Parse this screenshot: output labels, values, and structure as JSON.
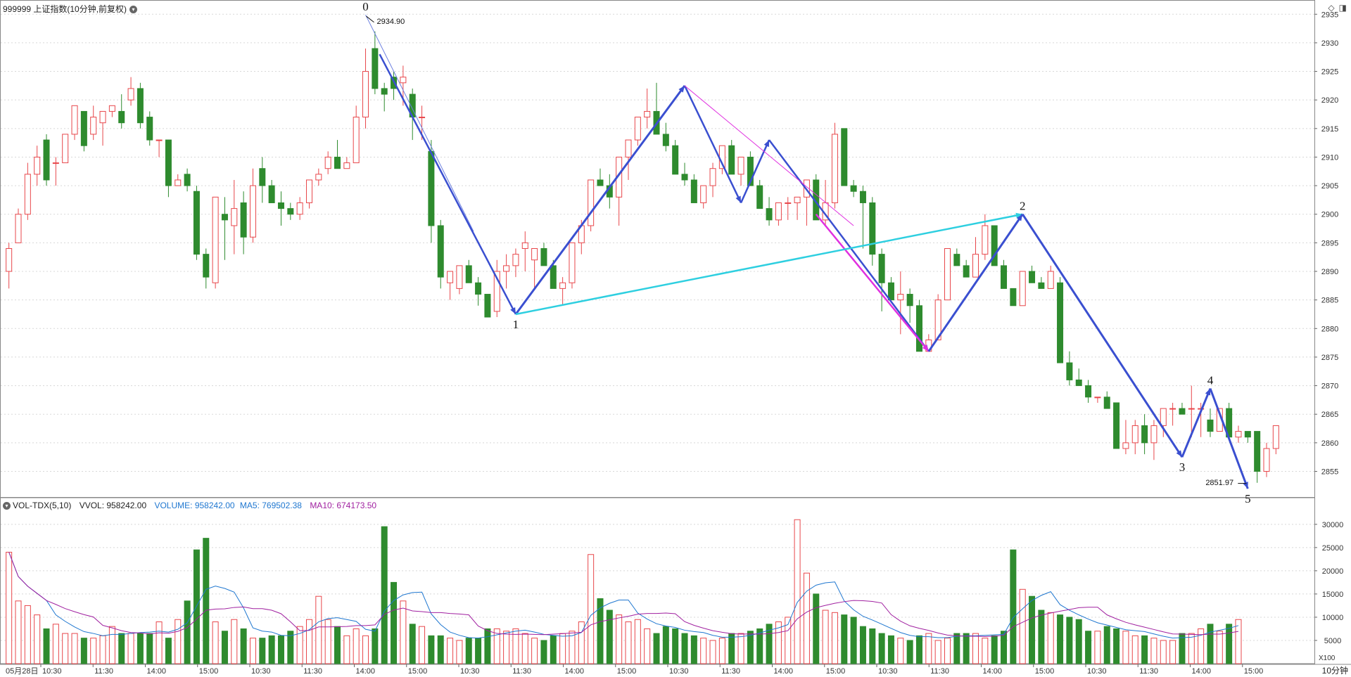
{
  "header": {
    "symbol_title": "999999 上证指数(10分钟,前复权)",
    "dropdown_icon": "chevron-down-icon",
    "icons": [
      "diamond-icon",
      "panel-toggle-icon"
    ]
  },
  "volume_header": {
    "indicator": "VOL-TDX(5,10)",
    "vvol": "VVOL: 958242.00",
    "volume": "VOLUME: 958242.00",
    "ma5": "MA5: 769502.38",
    "ma10": "MA10: 674173.50",
    "colors": {
      "volume": "#1f77d0",
      "ma5": "#1f77d0",
      "ma10": "#a020a0"
    }
  },
  "footer": {
    "period": "10分钟",
    "volume_unit": "X100"
  },
  "chart_data": [
    {
      "type": "candlestick",
      "ylim": [
        2851,
        2937
      ],
      "y_ticks": [
        2855,
        2860,
        2865,
        2870,
        2875,
        2880,
        2885,
        2890,
        2895,
        2900,
        2905,
        2910,
        2915,
        2920,
        2925,
        2930,
        2935
      ],
      "x_tick_labels": [
        "05月28日",
        "10:30",
        "11:30",
        "14:00",
        "15:00",
        "10:30",
        "11:30",
        "14:00",
        "15:00",
        "10:30",
        "11:30",
        "14:00",
        "15:00",
        "10:30",
        "11:30",
        "14:00",
        "15:00",
        "10:30",
        "11:30",
        "14:00",
        "15:00",
        "10:30",
        "11:30",
        "14:00",
        "15:00"
      ],
      "up_color": "#e8474b",
      "down_color": "#2e8b2e",
      "candles_ohlc": [
        [
          2890,
          2895,
          2887,
          2894
        ],
        [
          2895,
          2901,
          2895,
          2900
        ],
        [
          2900,
          2909,
          2899,
          2907
        ],
        [
          2907,
          2912,
          2905,
          2910
        ],
        [
          2913,
          2914,
          2905,
          2906
        ],
        [
          2909,
          2910,
          2905,
          2909
        ],
        [
          2909,
          2914,
          2909,
          2914
        ],
        [
          2914,
          2918,
          2913,
          2919
        ],
        [
          2918,
          2918,
          2911,
          2912
        ],
        [
          2914,
          2919,
          2913,
          2917
        ],
        [
          2916,
          2917,
          2912,
          2918
        ],
        [
          2918,
          2919,
          2917,
          2919
        ],
        [
          2918,
          2921,
          2915,
          2916
        ],
        [
          2920,
          2924,
          2919,
          2922
        ],
        [
          2922,
          2923,
          2915,
          2916
        ],
        [
          2917,
          2918,
          2912,
          2913
        ],
        [
          2913,
          2913,
          2910,
          2913
        ],
        [
          2913,
          2913,
          2903,
          2905
        ],
        [
          2905,
          2907,
          2905,
          2906
        ],
        [
          2907,
          2908,
          2904,
          2905
        ],
        [
          2904,
          2905,
          2892,
          2893
        ],
        [
          2893,
          2894,
          2887,
          2889
        ],
        [
          2888,
          2899,
          2887,
          2903
        ],
        [
          2900,
          2903,
          2892,
          2899
        ],
        [
          2898,
          2906,
          2893,
          2901
        ],
        [
          2902,
          2904,
          2893,
          2896
        ],
        [
          2896,
          2908,
          2895,
          2905
        ],
        [
          2908,
          2910,
          2902,
          2905
        ],
        [
          2905,
          2906,
          2902,
          2902
        ],
        [
          2902,
          2904,
          2898,
          2901
        ],
        [
          2901,
          2902,
          2899,
          2900
        ],
        [
          2900,
          2903,
          2899,
          2902
        ],
        [
          2902,
          2906,
          2901,
          2906
        ],
        [
          2906,
          2908,
          2905,
          2907
        ],
        [
          2908,
          2911,
          2907,
          2910
        ],
        [
          2910,
          2913,
          2908,
          2908
        ],
        [
          2908,
          2910,
          2908,
          2909
        ],
        [
          2909,
          2919,
          2909,
          2917
        ],
        [
          2917,
          2929,
          2915,
          2925
        ],
        [
          2929,
          2932,
          2921,
          2922
        ],
        [
          2922,
          2923,
          2918,
          2921
        ],
        [
          2924,
          2925,
          2920,
          2922
        ],
        [
          2923,
          2926,
          2919,
          2924
        ],
        [
          2921,
          2922,
          2913,
          2917
        ],
        [
          2917,
          2919,
          2913,
          2917
        ],
        [
          2911,
          2913,
          2895,
          2898
        ],
        [
          2898,
          2899,
          2887,
          2889
        ],
        [
          2888,
          2889,
          2885,
          2890
        ],
        [
          2887,
          2891,
          2886,
          2891
        ],
        [
          2891,
          2892,
          2888,
          2888
        ],
        [
          2888,
          2889,
          2884,
          2886
        ],
        [
          2886,
          2886,
          2882,
          2882
        ],
        [
          2883,
          2892,
          2882,
          2890
        ],
        [
          2890,
          2893,
          2887,
          2891
        ],
        [
          2891,
          2894,
          2889,
          2893
        ],
        [
          2894,
          2897,
          2890,
          2895
        ],
        [
          2892,
          2894,
          2887,
          2894
        ],
        [
          2894,
          2895,
          2891,
          2891
        ],
        [
          2891,
          2892,
          2887,
          2887
        ],
        [
          2887,
          2889,
          2884,
          2888
        ],
        [
          2888,
          2895,
          2887,
          2895
        ],
        [
          2895,
          2899,
          2893,
          2898
        ],
        [
          2898,
          2906,
          2897,
          2906
        ],
        [
          2906,
          2908,
          2905,
          2905
        ],
        [
          2905,
          2907,
          2901,
          2903
        ],
        [
          2903,
          2909,
          2898,
          2910
        ],
        [
          2910,
          2913,
          2906,
          2913
        ],
        [
          2913,
          2917,
          2912,
          2917
        ],
        [
          2917,
          2922,
          2915,
          2918
        ],
        [
          2918,
          2923,
          2914,
          2914
        ],
        [
          2914,
          2916,
          2911,
          2912
        ],
        [
          2912,
          2913,
          2908,
          2907
        ],
        [
          2907,
          2909,
          2905,
          2906
        ],
        [
          2906,
          2907,
          2902,
          2902
        ],
        [
          2902,
          2904,
          2901,
          2905
        ],
        [
          2905,
          2909,
          2903,
          2908
        ],
        [
          2908,
          2911,
          2907,
          2912
        ],
        [
          2912,
          2913,
          2907,
          2907
        ],
        [
          2907,
          2910,
          2905,
          2910
        ],
        [
          2910,
          2911,
          2905,
          2905
        ],
        [
          2905,
          2906,
          2901,
          2901
        ],
        [
          2901,
          2903,
          2898,
          2899
        ],
        [
          2899,
          2900,
          2898,
          2902
        ],
        [
          2902,
          2903,
          2899,
          2902
        ],
        [
          2902,
          2903,
          2899,
          2903
        ],
        [
          2903,
          2903,
          2898,
          2906
        ],
        [
          2906,
          2907,
          2903,
          2899
        ],
        [
          2899,
          2906,
          2898,
          2902
        ],
        [
          2902,
          2916,
          2901,
          2914
        ],
        [
          2915,
          2915,
          2905,
          2905
        ],
        [
          2905,
          2906,
          2903,
          2904
        ],
        [
          2904,
          2905,
          2894,
          2902
        ],
        [
          2902,
          2903,
          2891,
          2893
        ],
        [
          2893,
          2894,
          2883,
          2888
        ],
        [
          2888,
          2889,
          2887,
          2885
        ],
        [
          2885,
          2890,
          2879,
          2886
        ],
        [
          2886,
          2887,
          2881,
          2884
        ],
        [
          2884,
          2885,
          2876,
          2876
        ],
        [
          2876,
          2879,
          2876,
          2878
        ],
        [
          2878,
          2886,
          2878,
          2885
        ],
        [
          2885,
          2894,
          2885,
          2894
        ],
        [
          2893,
          2894,
          2891,
          2891
        ],
        [
          2891,
          2892,
          2889,
          2889
        ],
        [
          2889,
          2896,
          2889,
          2893
        ],
        [
          2893,
          2900,
          2892,
          2898
        ],
        [
          2898,
          2898,
          2891,
          2891
        ],
        [
          2891,
          2892,
          2887,
          2887
        ],
        [
          2887,
          2887,
          2885,
          2884
        ],
        [
          2884,
          2890,
          2885,
          2890
        ],
        [
          2890,
          2891,
          2888,
          2888
        ],
        [
          2888,
          2889,
          2887,
          2887
        ],
        [
          2887,
          2891,
          2887,
          2890
        ],
        [
          2888,
          2889,
          2874,
          2874
        ],
        [
          2874,
          2876,
          2870,
          2871
        ],
        [
          2871,
          2873,
          2870,
          2870
        ],
        [
          2870,
          2871,
          2867,
          2868
        ],
        [
          2868,
          2868,
          2867,
          2868
        ],
        [
          2868,
          2869,
          2866,
          2866
        ],
        [
          2867,
          2867,
          2859,
          2859
        ],
        [
          2859,
          2864,
          2858,
          2860
        ],
        [
          2860,
          2864,
          2858,
          2863
        ],
        [
          2863,
          2865,
          2858,
          2860
        ],
        [
          2860,
          2864,
          2857,
          2863
        ],
        [
          2863,
          2866,
          2861,
          2866
        ],
        [
          2866,
          2867,
          2863,
          2866
        ],
        [
          2866,
          2867,
          2865,
          2865
        ],
        [
          2866,
          2870,
          2861,
          2866
        ],
        [
          2866,
          2867,
          2861,
          2866
        ],
        [
          2864,
          2866,
          2861,
          2862
        ],
        [
          2862,
          2866,
          2862,
          2866
        ],
        [
          2866,
          2867,
          2861,
          2861
        ],
        [
          2861,
          2863,
          2860,
          2862
        ],
        [
          2862,
          2862,
          2860,
          2861
        ],
        [
          2862,
          2862,
          2853,
          2855
        ],
        [
          2855,
          2860,
          2854,
          2859
        ],
        [
          2859,
          2863,
          2858,
          2863
        ]
      ],
      "wave_labels": [
        {
          "label": "0",
          "value": 2934.9
        },
        {
          "label": "1",
          "value": 2882.5
        },
        {
          "label": "2",
          "value": 2900.0
        },
        {
          "label": "3",
          "value": 2857.5
        },
        {
          "label": "4",
          "value": 2869.5
        },
        {
          "label": "5",
          "value": 2851.97
        }
      ],
      "annotations": [
        "2934.90",
        "2851.97"
      ]
    },
    {
      "type": "bar",
      "series": [
        {
          "name": "VOLUME",
          "values": [
            24000,
            13500,
            12500,
            10500,
            7500,
            8500,
            6500,
            6500,
            5500,
            5500,
            6000,
            8000,
            6500,
            6500,
            6500,
            6500,
            9000,
            5500,
            9500,
            13500,
            24500,
            27000,
            9000,
            7000,
            9500,
            7500,
            5500,
            5500,
            6000,
            6000,
            7000,
            8000,
            9500,
            14500,
            9500,
            8000,
            6000,
            7500,
            6000,
            7500,
            29500,
            17500,
            13500,
            8500,
            8000,
            6000,
            6000,
            5500,
            5000,
            5500,
            5500,
            7500,
            7500,
            7000,
            7500,
            6500,
            5500,
            5000,
            6000,
            6500,
            7000,
            9000,
            23500,
            14000,
            11500,
            10500,
            9000,
            9500,
            7500,
            6500,
            8000,
            7500,
            6500,
            6000,
            5500,
            5000,
            5500,
            6500,
            6500,
            7000,
            7500,
            8500,
            9000,
            10000,
            31000,
            19500,
            15000,
            11500,
            11000,
            10500,
            10000,
            8000,
            7500,
            6500,
            6000,
            5500,
            5000,
            6000,
            6500,
            5000,
            5500,
            6500,
            6500,
            6500,
            5500,
            6000,
            7000,
            24500,
            16000,
            14500,
            11500,
            11000,
            10500,
            10000,
            9500,
            7000,
            7000,
            8000,
            7500,
            7000,
            6000,
            6000,
            5500,
            5000,
            5000,
            6500,
            6500,
            7500,
            8500,
            7000,
            8500,
            9500
          ]
        },
        {
          "name": "MA5",
          "values": []
        },
        {
          "name": "MA10",
          "values": []
        }
      ],
      "ylim": [
        0,
        33000
      ],
      "y_ticks": [
        5000,
        10000,
        15000,
        20000,
        25000,
        30000
      ]
    }
  ]
}
